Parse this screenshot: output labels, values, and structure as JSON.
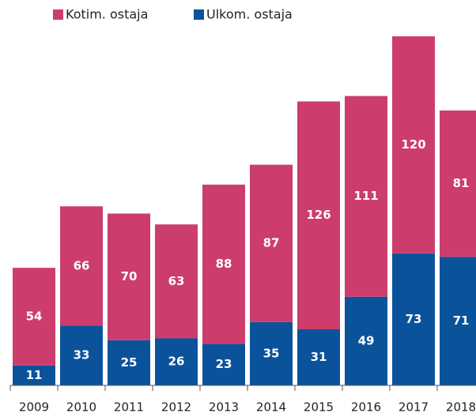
{
  "chart_data": {
    "type": "stacked_bar",
    "categories": [
      "2009",
      "2010",
      "2011",
      "2012",
      "2013",
      "2014",
      "2015",
      "2016",
      "2017",
      "2018"
    ],
    "series": [
      {
        "name": "Kotim. ostaja",
        "color": "#cc3d6e",
        "values": [
          54,
          66,
          70,
          63,
          88,
          87,
          126,
          111,
          120,
          81
        ]
      },
      {
        "name": "Ulkom. ostaja",
        "color": "#0a539b",
        "values": [
          11,
          33,
          25,
          26,
          23,
          35,
          31,
          49,
          73,
          71
        ]
      }
    ],
    "legend": "top-left"
  }
}
